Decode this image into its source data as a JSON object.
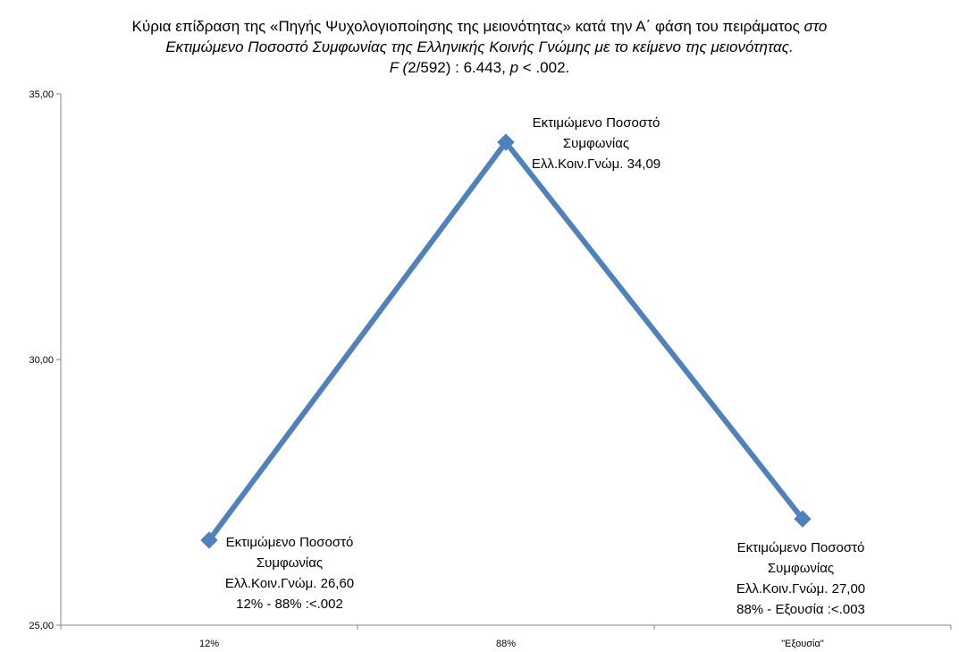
{
  "title": {
    "line1": "Κύρια επίδραση της «Πηγής Ψυχολογιοποίησης της μειονότητας» κατά την Α΄ φάση του πειράματος",
    "line1_italic": "στο",
    "line2": "Εκτιμώμενο Ποσοστό Συμφωνίας της Ελληνικής Κοινής Γνώμης με το κείμενο της μειονότητας.",
    "line3_f": "F",
    "line3_open": " (",
    "line3_df": "2/592) : 6.443, ",
    "line3_p": "p",
    "line3_rest": " < .002."
  },
  "chart_data": {
    "type": "line",
    "categories": [
      "12%",
      "88%",
      "\"Εξουσία\""
    ],
    "series": [
      {
        "values": [
          26.6,
          34.09,
          27.0
        ],
        "color": "#4f81bd"
      }
    ],
    "ylim": [
      25,
      35
    ],
    "yticks": [
      25,
      30,
      35
    ],
    "ytick_labels": [
      "25,00",
      "30,00",
      "35,00"
    ],
    "grid": false,
    "data_labels": [
      [
        "Εκτιμώμενο Ποσοστό",
        "Συμφωνίας",
        "Ελλ.Κοιν.Γνώμ. 26,60",
        "12% - 88% :<.002"
      ],
      [
        "Εκτιμώμενο Ποσοστό",
        "Συμφωνίας",
        "Ελλ.Κοιν.Γνώμ. 34,09"
      ],
      [
        "Εκτιμώμενο Ποσοστό",
        "Συμφωνίας",
        "Ελλ.Κοιν.Γνώμ. 27,00",
        "88% - Εξουσία :<.003"
      ]
    ]
  }
}
